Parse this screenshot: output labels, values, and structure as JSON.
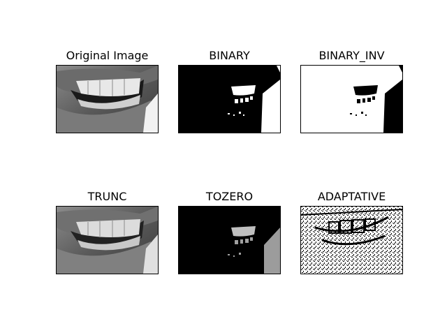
{
  "panels": [
    {
      "title": "Original Image"
    },
    {
      "title": "BINARY"
    },
    {
      "title": "BINARY_INV"
    },
    {
      "title": "TRUNC"
    },
    {
      "title": "TOZERO"
    },
    {
      "title": "ADAPTATIVE"
    }
  ]
}
